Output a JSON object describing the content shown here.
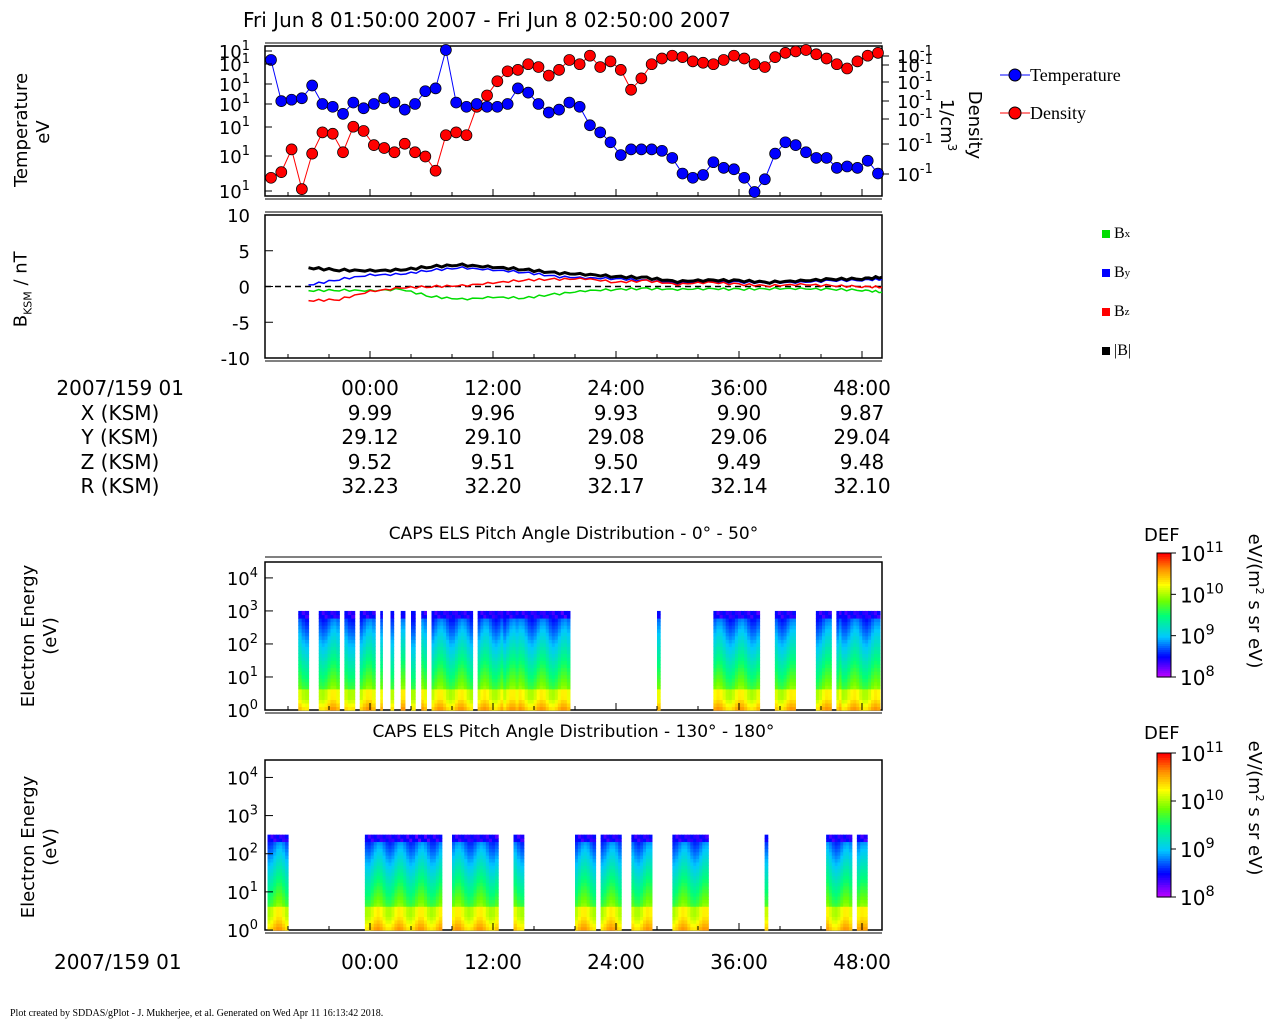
{
  "header": {
    "title": "Fri Jun 8 01:50:00 2007 - Fri Jun 8 02:50:00 2007"
  },
  "plasma": {
    "left_label_1": "Temperature",
    "left_label_2": "eV",
    "right_label_1": "Density",
    "right_label_2": "1/cm",
    "right_label_sup": "3",
    "temp_ticks": [
      "10",
      "10",
      "10",
      "10",
      "10",
      "10",
      "10"
    ],
    "temp_tick_exp": "1",
    "dens_ticks": [
      "10",
      "10",
      "10",
      "10",
      "10",
      "10",
      "10"
    ],
    "dens_tick_exp": "-1",
    "legend": [
      {
        "label": "Temperature",
        "color": "#0000ff"
      },
      {
        "label": "Density",
        "color": "#ff0000"
      }
    ]
  },
  "mag": {
    "ylabel_main": "B",
    "ylabel_sub": "KSM",
    "ylabel_unit": " / nT",
    "yticks": [
      "10",
      "5",
      "0",
      "-5",
      "-10"
    ],
    "legend": [
      {
        "label": "B",
        "sub": "x",
        "color": "#00dd00"
      },
      {
        "label": "B",
        "sub": "y",
        "color": "#0000ff"
      },
      {
        "label": "B",
        "sub": "z",
        "color": "#ff0000"
      },
      {
        "label": "|B|",
        "sub": "",
        "color": "#000000"
      }
    ]
  },
  "ephemeris": {
    "row_labels": [
      "2007/159 01",
      "X (KSM)",
      "Y (KSM)",
      "Z (KSM)",
      "R (KSM)"
    ],
    "columns": [
      {
        "time": "00:00",
        "x": "9.99",
        "y": "29.12",
        "z": "9.52",
        "r": "32.23"
      },
      {
        "time": "12:00",
        "x": "9.96",
        "y": "29.10",
        "z": "9.51",
        "r": "32.20"
      },
      {
        "time": "24:00",
        "x": "9.93",
        "y": "29.08",
        "z": "9.50",
        "r": "32.17"
      },
      {
        "time": "36:00",
        "x": "9.90",
        "y": "29.06",
        "z": "9.49",
        "r": "32.14"
      },
      {
        "time": "48:00",
        "x": "9.87",
        "y": "29.04",
        "z": "9.48",
        "r": "32.10"
      }
    ]
  },
  "spectrogram1": {
    "title": "CAPS ELS Pitch Angle Distribution - 0° - 50°",
    "ylabel_1": "Electron Energy",
    "ylabel_2": "(eV)",
    "yticks": [
      {
        "base": "10",
        "exp": "4"
      },
      {
        "base": "10",
        "exp": "3"
      },
      {
        "base": "10",
        "exp": "2"
      },
      {
        "base": "10",
        "exp": "1"
      },
      {
        "base": "10",
        "exp": "0"
      }
    ]
  },
  "spectrogram2": {
    "title": "CAPS ELS Pitch Angle Distribution - 130° - 180°",
    "ylabel_1": "Electron Energy",
    "ylabel_2": "(eV)",
    "yticks": [
      {
        "base": "10",
        "exp": "4"
      },
      {
        "base": "10",
        "exp": "3"
      },
      {
        "base": "10",
        "exp": "2"
      },
      {
        "base": "10",
        "exp": "1"
      },
      {
        "base": "10",
        "exp": "0"
      }
    ]
  },
  "colorbar": {
    "label": "DEF",
    "unit": "eV/(m",
    "unit_sup": "2",
    "unit_tail": " s sr eV)",
    "ticks": [
      {
        "base": "10",
        "exp": "11"
      },
      {
        "base": "10",
        "exp": "10"
      },
      {
        "base": "10",
        "exp": "9"
      },
      {
        "base": "10",
        "exp": "8"
      }
    ]
  },
  "bottom_axis": {
    "date": "2007/159 01",
    "ticks": [
      "00:00",
      "12:00",
      "24:00",
      "36:00",
      "48:00"
    ]
  },
  "footer": "Plot created by SDDAS/gPlot - J. Mukherjee, et al.  Generated on Wed Apr 11 16:13:42 2018.",
  "chart_data": [
    {
      "type": "line",
      "title": "",
      "series": [
        {
          "name": "Temperature",
          "color": "#0000ff",
          "x": [
            0,
            1,
            2,
            3,
            4,
            5,
            6,
            7,
            8,
            9,
            10,
            11,
            12,
            13,
            14,
            15,
            16,
            17,
            18,
            19,
            20,
            21,
            22,
            23,
            24,
            25,
            26,
            27,
            28,
            29,
            30,
            31,
            32,
            33,
            34,
            35,
            36,
            37,
            38,
            39,
            40,
            41,
            42,
            43,
            44,
            45,
            46,
            47,
            48,
            49,
            50,
            51,
            52,
            53,
            54,
            55,
            56,
            57,
            58,
            59
          ],
          "values": [
            0.93,
            0.64,
            0.65,
            0.66,
            0.75,
            0.62,
            0.6,
            0.55,
            0.63,
            0.59,
            0.62,
            0.66,
            0.63,
            0.58,
            0.62,
            0.71,
            0.73,
            1.0,
            0.63,
            0.6,
            0.62,
            0.6,
            0.6,
            0.62,
            0.73,
            0.7,
            0.62,
            0.56,
            0.58,
            0.63,
            0.6,
            0.47,
            0.42,
            0.35,
            0.26,
            0.3,
            0.3,
            0.3,
            0.29,
            0.24,
            0.13,
            0.1,
            0.12,
            0.21,
            0.17,
            0.16,
            0.1,
            0.0,
            0.09,
            0.27,
            0.35,
            0.33,
            0.28,
            0.24,
            0.24,
            0.17,
            0.18,
            0.17,
            0.22,
            0.13
          ]
        },
        {
          "name": "Density",
          "color": "#ff0000",
          "x": [
            0,
            1,
            2,
            3,
            4,
            5,
            6,
            7,
            8,
            9,
            10,
            11,
            12,
            13,
            14,
            15,
            16,
            17,
            18,
            19,
            20,
            21,
            22,
            23,
            24,
            25,
            26,
            27,
            28,
            29,
            30,
            31,
            32,
            33,
            34,
            35,
            36,
            37,
            38,
            39,
            40,
            41,
            42,
            43,
            44,
            45,
            46,
            47,
            48,
            49,
            50,
            51,
            52,
            53,
            54,
            55,
            56,
            57,
            58,
            59
          ],
          "values": [
            0.1,
            0.14,
            0.3,
            0.02,
            0.27,
            0.42,
            0.41,
            0.28,
            0.46,
            0.43,
            0.33,
            0.31,
            0.28,
            0.34,
            0.28,
            0.25,
            0.15,
            0.4,
            0.42,
            0.4,
            0.6,
            0.68,
            0.78,
            0.85,
            0.86,
            0.9,
            0.88,
            0.82,
            0.86,
            0.93,
            0.9,
            0.96,
            0.88,
            0.92,
            0.86,
            0.72,
            0.8,
            0.9,
            0.94,
            0.96,
            0.95,
            0.92,
            0.91,
            0.9,
            0.93,
            0.96,
            0.94,
            0.9,
            0.88,
            0.95,
            0.98,
            0.99,
            1.0,
            0.97,
            0.94,
            0.9,
            0.87,
            0.92,
            0.96,
            0.98
          ]
        }
      ]
    },
    {
      "type": "line",
      "title": "",
      "ylabel": "B KSM / nT",
      "ylim": [
        -10,
        10
      ],
      "series": [
        {
          "name": "Bx",
          "color": "#00dd00",
          "x": [
            -6,
            -3,
            0,
            3,
            6,
            9,
            12,
            15,
            18,
            21,
            24,
            27,
            30,
            33,
            36,
            39,
            42,
            45,
            48,
            50
          ],
          "values": [
            -0.6,
            -0.5,
            -0.6,
            -0.4,
            -1.4,
            -1.8,
            -1.5,
            -1.6,
            -1.1,
            -0.6,
            -0.4,
            -0.3,
            -0.4,
            -0.3,
            -0.4,
            -0.3,
            -0.3,
            -0.4,
            -0.5,
            -0.8
          ]
        },
        {
          "name": "By",
          "color": "#0000ff",
          "x": [
            -6,
            -3,
            0,
            3,
            6,
            9,
            12,
            15,
            18,
            21,
            24,
            27,
            30,
            33,
            36,
            39,
            42,
            45,
            48,
            50
          ],
          "values": [
            0.2,
            1.0,
            1.6,
            1.7,
            2.3,
            2.6,
            2.3,
            2.0,
            1.4,
            1.2,
            1.1,
            0.8,
            0.5,
            0.7,
            0.6,
            0.5,
            0.6,
            0.8,
            0.9,
            1.0
          ]
        },
        {
          "name": "Bz",
          "color": "#ff0000",
          "x": [
            -6,
            -3,
            0,
            3,
            6,
            9,
            12,
            15,
            18,
            21,
            24,
            27,
            30,
            33,
            36,
            39,
            42,
            45,
            48,
            50
          ],
          "values": [
            -2.0,
            -1.8,
            -0.7,
            -0.2,
            0.0,
            0.1,
            0.5,
            0.9,
            1.0,
            1.1,
            0.6,
            0.8,
            0.3,
            0.6,
            0.3,
            0.1,
            0.3,
            0.1,
            0.0,
            -0.1
          ]
        },
        {
          "name": "|B|",
          "color": "#000000",
          "x": [
            -6,
            -3,
            0,
            3,
            6,
            9,
            12,
            15,
            18,
            21,
            24,
            27,
            30,
            33,
            36,
            39,
            42,
            45,
            48,
            50
          ],
          "values": [
            2.6,
            2.3,
            2.2,
            2.3,
            2.8,
            3.0,
            2.7,
            2.4,
            1.9,
            1.7,
            1.4,
            1.2,
            0.7,
            0.9,
            0.8,
            0.6,
            0.8,
            1.0,
            1.1,
            1.3
          ]
        }
      ]
    },
    {
      "type": "heatmap",
      "title": "CAPS ELS Pitch Angle Distribution - 0° - 50°",
      "ylabel": "Electron Energy (eV)",
      "x_range": [
        -10,
        50
      ],
      "y_range_log10": [
        0,
        4.3
      ],
      "color_range_log10": [
        8,
        11
      ],
      "data_intervals": [
        [
          -7,
          -6
        ],
        [
          -5,
          -3
        ],
        [
          -2.5,
          -1.5
        ],
        [
          -1,
          0.5
        ],
        [
          1,
          1.2
        ],
        [
          2,
          2.3
        ],
        [
          3,
          3.4
        ],
        [
          4,
          4.4
        ],
        [
          5,
          5.5
        ],
        [
          6,
          10
        ],
        [
          10.5,
          13
        ],
        [
          13,
          14.5
        ],
        [
          14.5,
          19.5
        ],
        [
          28,
          28.3
        ],
        [
          33.5,
          38
        ],
        [
          39.5,
          41.5
        ],
        [
          43.5,
          45
        ],
        [
          45.5,
          46
        ],
        [
          46,
          50
        ]
      ],
      "upper_energy_log10": 3.0
    },
    {
      "type": "heatmap",
      "title": "CAPS ELS Pitch Angle Distribution - 130° - 180°",
      "ylabel": "Electron Energy (eV)",
      "x_range": [
        -10,
        50
      ],
      "y_range_log10": [
        0,
        4.3
      ],
      "color_range_log10": [
        8,
        11
      ],
      "data_intervals": [
        [
          -10,
          -8
        ],
        [
          -0.5,
          7
        ],
        [
          8,
          12.5
        ],
        [
          14,
          15
        ],
        [
          20,
          22
        ],
        [
          22.5,
          24.5
        ],
        [
          25.5,
          27.5
        ],
        [
          29.5,
          33
        ],
        [
          38.5,
          38.8
        ],
        [
          44.5,
          47
        ],
        [
          47.5,
          48.5
        ]
      ],
      "upper_energy_log10": 2.5
    }
  ]
}
